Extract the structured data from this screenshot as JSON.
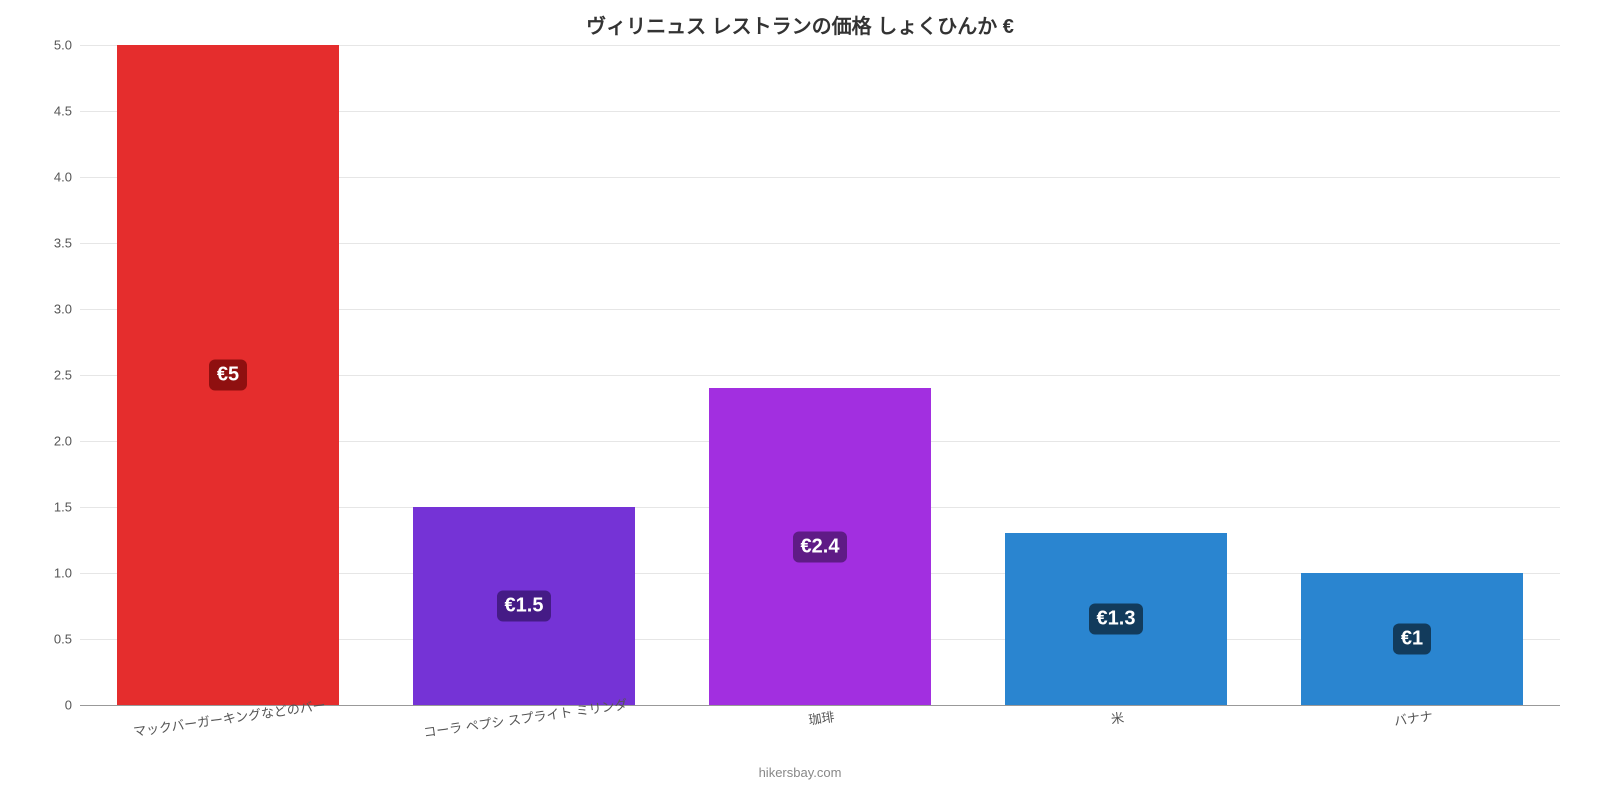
{
  "chart": {
    "type": "bar",
    "title": "ヴィリニュス レストランの価格 しょくひんか €",
    "title_fontsize": 20,
    "title_color": "#333333",
    "background_color": "#ffffff",
    "grid_color": "#e6e6e6",
    "axis_color": "#999999",
    "ylim": [
      0,
      5
    ],
    "ytick_step": 0.5,
    "yticks": [
      "0",
      "0.5",
      "1.0",
      "1.5",
      "2.0",
      "2.5",
      "3.0",
      "3.5",
      "4.0",
      "4.5",
      "5.0"
    ],
    "ytick_fontsize": 13,
    "xtick_fontsize": 13,
    "xtick_rotation_deg": -8,
    "label_color": "#555555",
    "bar_width_ratio": 0.75,
    "value_label_fontsize": 20,
    "categories": [
      "マックバーガーキングなどのバー",
      "コーラ ペプシ スプライト ミリンダ",
      "珈琲",
      "米",
      "バナナ"
    ],
    "values": [
      5,
      1.5,
      2.4,
      1.3,
      1
    ],
    "value_labels": [
      "€5",
      "€1.5",
      "€2.4",
      "€1.3",
      "€1"
    ],
    "bar_colors": [
      "#e52d2d",
      "#7533d6",
      "#a22fe0",
      "#2a85d0",
      "#2a85d0"
    ],
    "badge_bg_colors": [
      "#8f1010",
      "#451b86",
      "#5f1b86",
      "#123b5c",
      "#123b5c"
    ],
    "attribution": "hikersbay.com",
    "attribution_color": "#888888"
  }
}
